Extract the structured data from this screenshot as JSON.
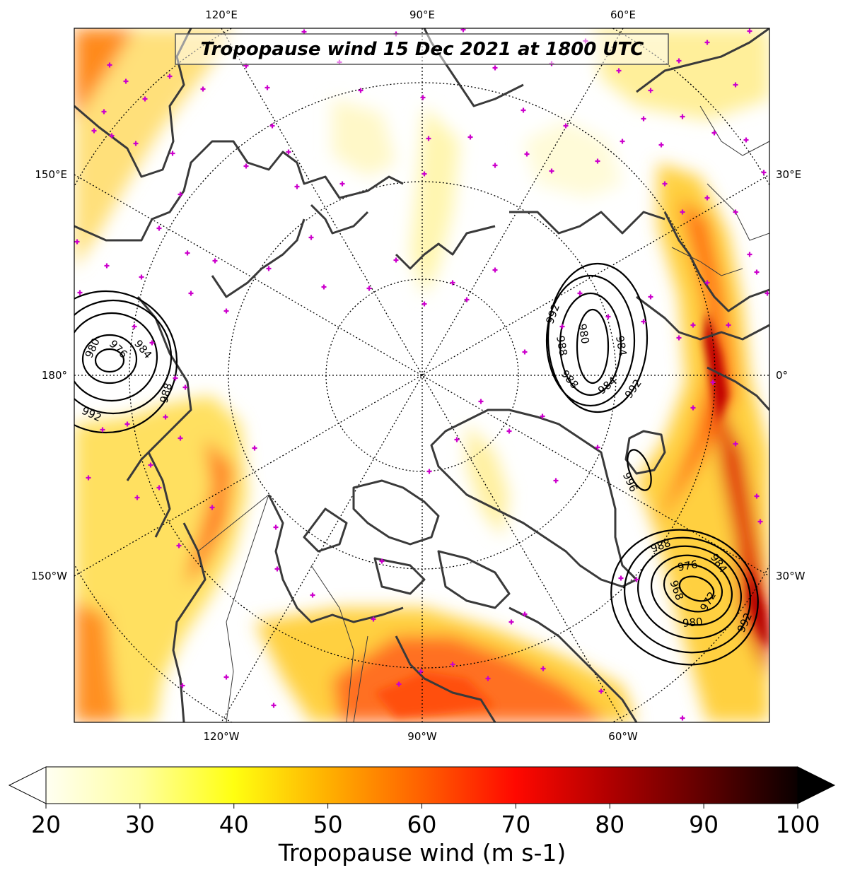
{
  "map": {
    "title": "Tropopause wind 15 Dec 2021 at 1800 UTC",
    "projection": "north-polar-stereographic",
    "lon_labels_top": [
      "120°E",
      "90°E",
      "60°E"
    ],
    "lon_labels_bottom": [
      "120°W",
      "90°W",
      "60°W"
    ],
    "lon_labels_left": [
      "150°E",
      "180°",
      "150°W"
    ],
    "lon_labels_right": [
      "30°E",
      "0°",
      "30°W"
    ],
    "pressure_contour_labels": {
      "low_left": [
        "980",
        "976",
        "984",
        "988",
        "992"
      ],
      "low_center": [
        "992",
        "980",
        "988",
        "984",
        "988",
        "984",
        "992"
      ],
      "low_right_small": [
        "996"
      ],
      "low_bottom_right": [
        "988",
        "976",
        "984",
        "968",
        "972",
        "980",
        "992"
      ]
    },
    "colors": {
      "marker": "#cc00cc",
      "coastline": "#3a3a3a",
      "contour": "#000000"
    }
  },
  "colorbar": {
    "label": "Tropopause wind (m s-1)",
    "ticks": [
      "20",
      "30",
      "40",
      "50",
      "60",
      "70",
      "80",
      "90",
      "100"
    ],
    "min": 20,
    "max": 100,
    "extend": "both",
    "colormap": "hot_r"
  }
}
